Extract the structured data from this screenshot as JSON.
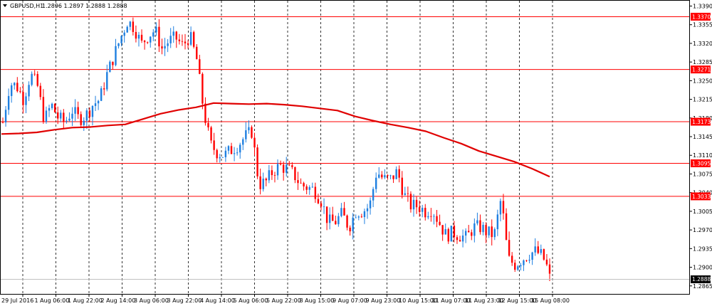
{
  "header": {
    "arrow_icon": "triangle-down-icon",
    "symbol": "GBPUSD,H1",
    "ohlc": "1.2896 1.2897 1.2888 1.2888"
  },
  "colors": {
    "up": "#1e7fe0",
    "down": "#ff0000",
    "ma": "#e00000",
    "level": "#ff0000",
    "grid": "#000000",
    "last_price_bg": "#000000"
  },
  "chart_data": {
    "type": "candlestick",
    "title": "GBPUSD,H1",
    "ylim": [
      1.285,
      1.34
    ],
    "y_ticks": [
      "1.3390",
      "1.3355",
      "1.3320",
      "1.3285",
      "1.3250",
      "1.3215",
      "1.3180",
      "1.3145",
      "1.3110",
      "1.3075",
      "1.3040",
      "1.3005",
      "1.2970",
      "1.2935",
      "1.2900",
      "1.2865"
    ],
    "x_labels": [
      "29 Jul 2016",
      "1 Aug 06:00",
      "1 Aug 22:00",
      "2 Aug 14:00",
      "3 Aug 06:00",
      "3 Aug 22:00",
      "4 Aug 14:00",
      "5 Aug 06:00",
      "5 Aug 22:00",
      "8 Aug 15:00",
      "9 Aug 07:00",
      "9 Aug 23:00",
      "10 Aug 15:00",
      "11 Aug 07:00",
      "11 Aug 23:00",
      "12 Aug 15:00",
      "15 Aug 08:00"
    ],
    "horizontal_levels": [
      "1.3370",
      "1.3271",
      "1.3173",
      "1.3095",
      "1.3033"
    ],
    "last_price": "1.2888",
    "grid": true,
    "price_path": [
      1.3172,
      1.3245,
      1.324,
      1.3215,
      1.3262,
      1.324,
      1.3175,
      1.3205,
      1.318,
      1.3172,
      1.3195,
      1.3178,
      1.3185,
      1.3205,
      1.3215,
      1.326,
      1.3295,
      1.333,
      1.3362,
      1.335,
      1.3318,
      1.3335,
      1.3345,
      1.331,
      1.3325,
      1.333,
      1.3315,
      1.3335,
      1.329,
      1.3195,
      1.313,
      1.3115,
      1.311,
      1.312,
      1.313,
      1.3145,
      1.3155,
      1.3055,
      1.306,
      1.308,
      1.309,
      1.3085,
      1.3075,
      1.3055,
      1.305,
      1.3045,
      1.3025,
      1.2985,
      1.2985,
      1.3,
      1.2975,
      1.3005,
      1.3005,
      1.3015,
      1.308,
      1.3065,
      1.3065,
      1.308,
      1.3035,
      1.3015,
      1.3015,
      1.3005,
      1.301,
      1.2985,
      1.296,
      1.2965,
      1.296,
      1.2955,
      1.2975,
      1.2975,
      1.2965,
      1.296,
      1.303,
      1.2915,
      1.2905,
      1.2915,
      1.2925,
      1.293,
      1.292,
      1.2888
    ],
    "ma_path": [
      1.315,
      1.3151,
      1.3153,
      1.3158,
      1.3162,
      1.3163,
      1.3166,
      1.3168,
      1.3178,
      1.3188,
      1.3195,
      1.32,
      1.3208,
      1.3207,
      1.3206,
      1.3207,
      1.3205,
      1.3202,
      1.3198,
      1.3194,
      1.3183,
      1.3175,
      1.3168,
      1.3162,
      1.3155,
      1.3143,
      1.3132,
      1.3118,
      1.3108,
      1.3098,
      1.3085,
      1.307
    ]
  }
}
